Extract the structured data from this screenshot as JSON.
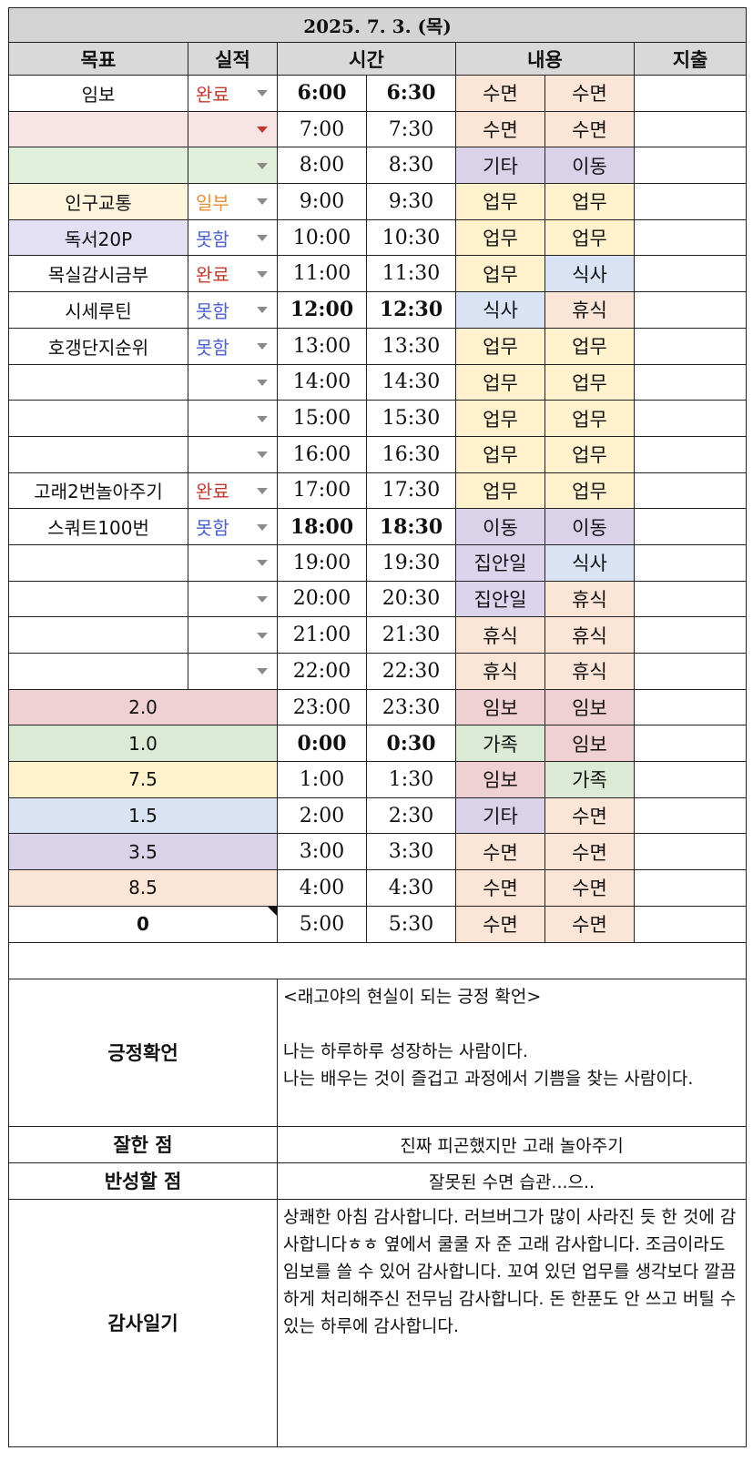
{
  "title": "2025. 7. 3. (목)",
  "headers": {
    "goal": "목표",
    "result": "실적",
    "time": "시간",
    "content": "내용",
    "expense": "지출"
  },
  "colors": {
    "status_done": "#c0392b",
    "status_partial": "#e69138",
    "status_fail": "#4a5fd1",
    "sleep": "#fbe5d6",
    "etc": "#d9d2e9",
    "work": "#fff2cc",
    "meal": "#dae3f3",
    "rest": "#fbe5d6",
    "study": "#efd0d3",
    "family": "#dbe9d5"
  },
  "rows": [
    {
      "goal": "임보",
      "result": "완료",
      "t1": "6:00",
      "t2": "6:30",
      "c1": "수면",
      "c2": "수면"
    },
    {
      "goal": "",
      "result": "",
      "t1": "7:00",
      "t2": "7:30",
      "c1": "수면",
      "c2": "수면"
    },
    {
      "goal": "",
      "result": "",
      "t1": "8:00",
      "t2": "8:30",
      "c1": "기타",
      "c2": "이동"
    },
    {
      "goal": "인구교통",
      "result": "일부",
      "t1": "9:00",
      "t2": "9:30",
      "c1": "업무",
      "c2": "업무"
    },
    {
      "goal": "독서20P",
      "result": "못함",
      "t1": "10:00",
      "t2": "10:30",
      "c1": "업무",
      "c2": "업무"
    },
    {
      "goal": "목실감시금부",
      "result": "완료",
      "t1": "11:00",
      "t2": "11:30",
      "c1": "업무",
      "c2": "식사"
    },
    {
      "goal": "시세루틴",
      "result": "못함",
      "t1": "12:00",
      "t2": "12:30",
      "c1": "식사",
      "c2": "휴식"
    },
    {
      "goal": "호갱단지순위",
      "result": "못함",
      "t1": "13:00",
      "t2": "13:30",
      "c1": "업무",
      "c2": "업무"
    },
    {
      "goal": "",
      "result": "",
      "t1": "14:00",
      "t2": "14:30",
      "c1": "업무",
      "c2": "업무"
    },
    {
      "goal": "",
      "result": "",
      "t1": "15:00",
      "t2": "15:30",
      "c1": "업무",
      "c2": "업무"
    },
    {
      "goal": "",
      "result": "",
      "t1": "16:00",
      "t2": "16:30",
      "c1": "업무",
      "c2": "업무"
    },
    {
      "goal": "고래2번놀아주기",
      "result": "완료",
      "t1": "17:00",
      "t2": "17:30",
      "c1": "업무",
      "c2": "업무"
    },
    {
      "goal": "스쿼트100번",
      "result": "못함",
      "t1": "18:00",
      "t2": "18:30",
      "c1": "이동",
      "c2": "이동"
    },
    {
      "goal": "",
      "result": "",
      "t1": "19:00",
      "t2": "19:30",
      "c1": "집안일",
      "c2": "식사"
    },
    {
      "goal": "",
      "result": "",
      "t1": "20:00",
      "t2": "20:30",
      "c1": "집안일",
      "c2": "휴식"
    },
    {
      "goal": "",
      "result": "",
      "t1": "21:00",
      "t2": "21:30",
      "c1": "휴식",
      "c2": "휴식"
    },
    {
      "goal": "",
      "result": "",
      "t1": "22:00",
      "t2": "22:30",
      "c1": "휴식",
      "c2": "휴식"
    }
  ],
  "sums": [
    {
      "value": "2.0",
      "t1": "23:00",
      "t2": "23:30",
      "c1": "임보",
      "c2": "임보"
    },
    {
      "value": "1.0",
      "t1": "0:00",
      "t2": "0:30",
      "c1": "가족",
      "c2": "임보"
    },
    {
      "value": "7.5",
      "t1": "1:00",
      "t2": "1:30",
      "c1": "임보",
      "c2": "가족"
    },
    {
      "value": "1.5",
      "t1": "2:00",
      "t2": "2:30",
      "c1": "기타",
      "c2": "수면"
    },
    {
      "value": "3.5",
      "t1": "3:00",
      "t2": "3:30",
      "c1": "수면",
      "c2": "수면"
    },
    {
      "value": "8.5",
      "t1": "4:00",
      "t2": "4:30",
      "c1": "수면",
      "c2": "수면"
    },
    {
      "value": "0",
      "t1": "5:00",
      "t2": "5:30",
      "c1": "수면",
      "c2": "수면"
    }
  ],
  "affirmation": {
    "label": "긍정확언",
    "heading": "<래고야의 현실이 되는 긍정 확언>",
    "line1": "나는 하루하루 성장하는 사람이다.",
    "line2": "나는 배우는 것이 즐겁고 과정에서 기쁨을 찾는 사람이다."
  },
  "good": {
    "label": "잘한 점",
    "text": "진짜 피곤했지만 고래 놀아주기"
  },
  "reflect": {
    "label": "반성할 점",
    "text": "잘못된 수면 습관...으.."
  },
  "gratitude": {
    "label": "감사일기",
    "text": "상쾌한 아침 감사합니다. 러브버그가 많이 사라진 듯 한 것에 감사합니다ㅎㅎ 옆에서 쿨쿨 자 준 고래 감사합니다. 조금이라도 임보를 쓸 수 있어 감사합니다. 꼬여 있던 업무를 생각보다 깔끔하게 처리해주신 전무님 감사합니다. 돈 한푼도 안 쓰고 버틸 수 있는 하루에 감사합니다."
  }
}
